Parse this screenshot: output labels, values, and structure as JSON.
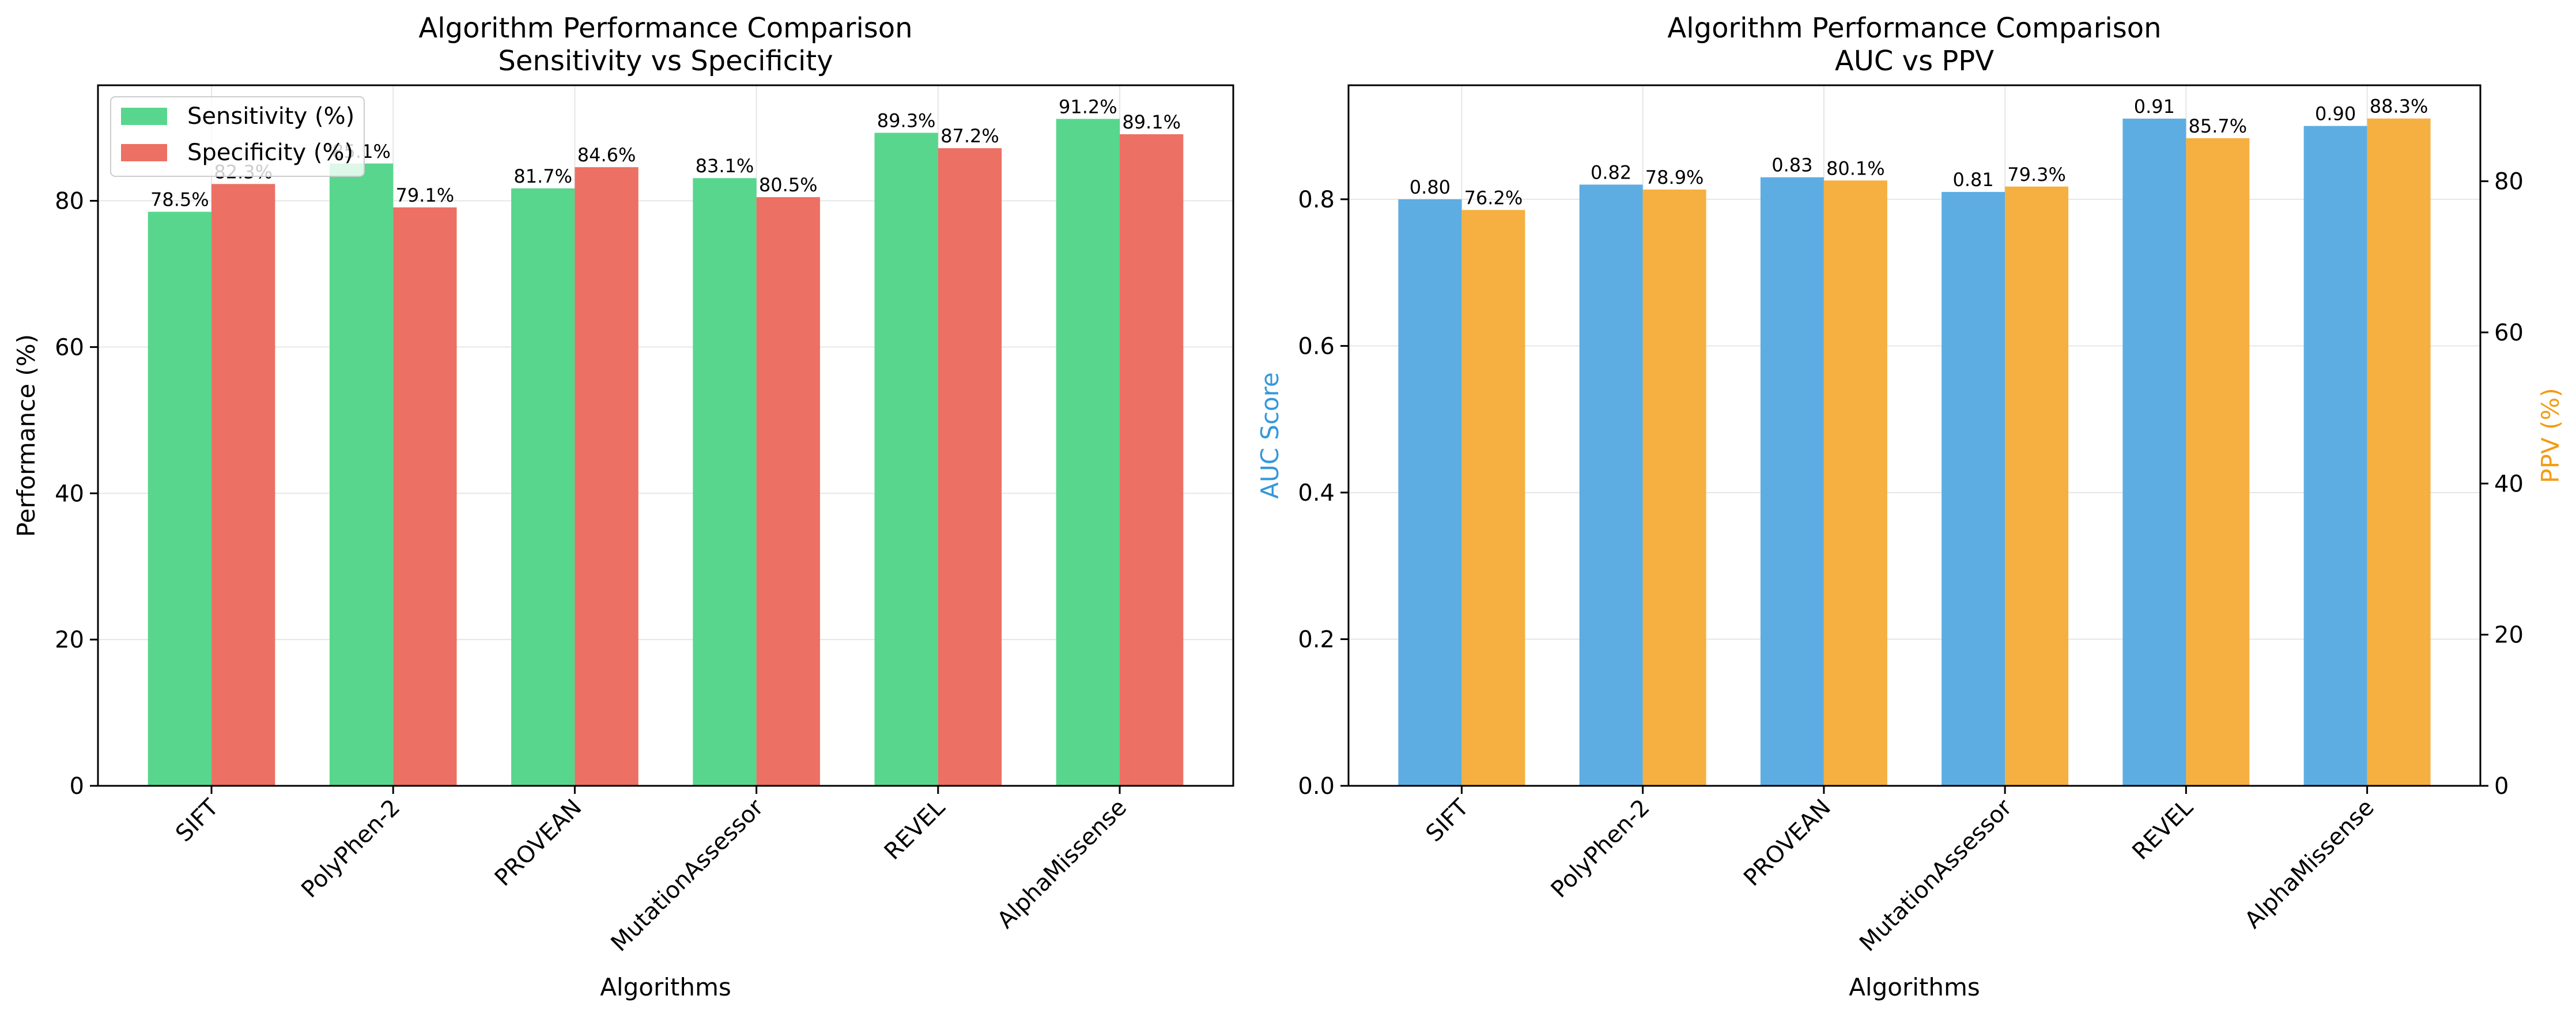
{
  "chart_data": [
    {
      "type": "bar",
      "title": "Algorithm Performance Comparison",
      "subtitle": "Sensitivity vs Specificity",
      "xlabel": "Algorithms",
      "ylabel": "Performance (%)",
      "ylim": [
        0,
        95.8
      ],
      "yticks": [
        0,
        20,
        40,
        60,
        80
      ],
      "grid": true,
      "legend_position": "top-left",
      "categories": [
        "SIFT",
        "PolyPhen-2",
        "PROVEAN",
        "MutationAssessor",
        "REVEL",
        "AlphaMissense"
      ],
      "series": [
        {
          "name": "Sensitivity (%)",
          "color": "#58d68d",
          "values": [
            78.5,
            85.1,
            81.7,
            83.1,
            89.3,
            91.2
          ],
          "labels": [
            "78.5%",
            "85.1%",
            "81.7%",
            "83.1%",
            "89.3%",
            "91.2%"
          ]
        },
        {
          "name": "Specificity (%)",
          "color": "#ec7063",
          "values": [
            82.3,
            79.1,
            84.6,
            80.5,
            87.2,
            89.1
          ],
          "labels": [
            "82.3%",
            "79.1%",
            "84.6%",
            "80.5%",
            "87.2%",
            "89.1%"
          ]
        }
      ]
    },
    {
      "type": "bar",
      "title": "Algorithm Performance Comparison",
      "subtitle": "AUC vs PPV",
      "xlabel": "Algorithms",
      "ylabel": "AUC Score",
      "ylabel_color": "#3498db",
      "ylim": [
        0,
        0.9555
      ],
      "yticks": [
        0.0,
        0.2,
        0.4,
        0.6,
        0.8
      ],
      "ytick_labels": [
        "0.0",
        "0.2",
        "0.4",
        "0.6",
        "0.8"
      ],
      "y2label": "PPV (%)",
      "y2label_color": "#f39c12",
      "y2lim": [
        0,
        92.7
      ],
      "y2ticks": [
        0,
        20,
        40,
        60,
        80
      ],
      "grid": true,
      "categories": [
        "SIFT",
        "PolyPhen-2",
        "PROVEAN",
        "MutationAssessor",
        "REVEL",
        "AlphaMissense"
      ],
      "series": [
        {
          "name": "AUC Score",
          "axis": "left",
          "color": "#5dade2",
          "values": [
            0.8,
            0.82,
            0.83,
            0.81,
            0.91,
            0.9
          ],
          "labels": [
            "0.80",
            "0.82",
            "0.83",
            "0.81",
            "0.91",
            "0.90"
          ]
        },
        {
          "name": "PPV (%)",
          "axis": "right",
          "color": "#f5b041",
          "values": [
            76.2,
            78.9,
            80.1,
            79.3,
            85.7,
            88.3
          ],
          "labels": [
            "76.2%",
            "78.9%",
            "80.1%",
            "79.3%",
            "85.7%",
            "88.3%"
          ]
        }
      ]
    }
  ]
}
